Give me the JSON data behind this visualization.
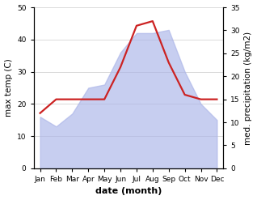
{
  "months": [
    "Jan",
    "Feb",
    "Mar",
    "Apr",
    "May",
    "Jun",
    "Jul",
    "Aug",
    "Sep",
    "Oct",
    "Nov",
    "Dec"
  ],
  "month_positions": [
    0,
    1,
    2,
    3,
    4,
    5,
    6,
    7,
    8,
    9,
    10,
    11
  ],
  "max_temp": [
    16,
    13,
    17,
    25,
    26,
    36,
    42,
    42,
    43,
    30,
    20,
    15
  ],
  "precipitation": [
    12,
    15,
    15,
    15,
    15,
    22,
    31,
    32,
    23,
    16,
    15,
    15
  ],
  "temp_ylim": [
    0,
    50
  ],
  "precip_ylim": [
    0,
    35
  ],
  "temp_yticks": [
    0,
    10,
    20,
    30,
    40,
    50
  ],
  "precip_yticks": [
    0,
    5,
    10,
    15,
    20,
    25,
    30,
    35
  ],
  "area_color": "#aab4e8",
  "area_alpha": 0.65,
  "line_color": "#cc2222",
  "line_width": 1.6,
  "xlabel": "date (month)",
  "ylabel_left": "max temp (C)",
  "ylabel_right": "med. precipitation (kg/m2)",
  "background_color": "#ffffff",
  "label_fontsize": 7.5,
  "tick_fontsize": 6.5,
  "xlabel_fontsize": 8
}
